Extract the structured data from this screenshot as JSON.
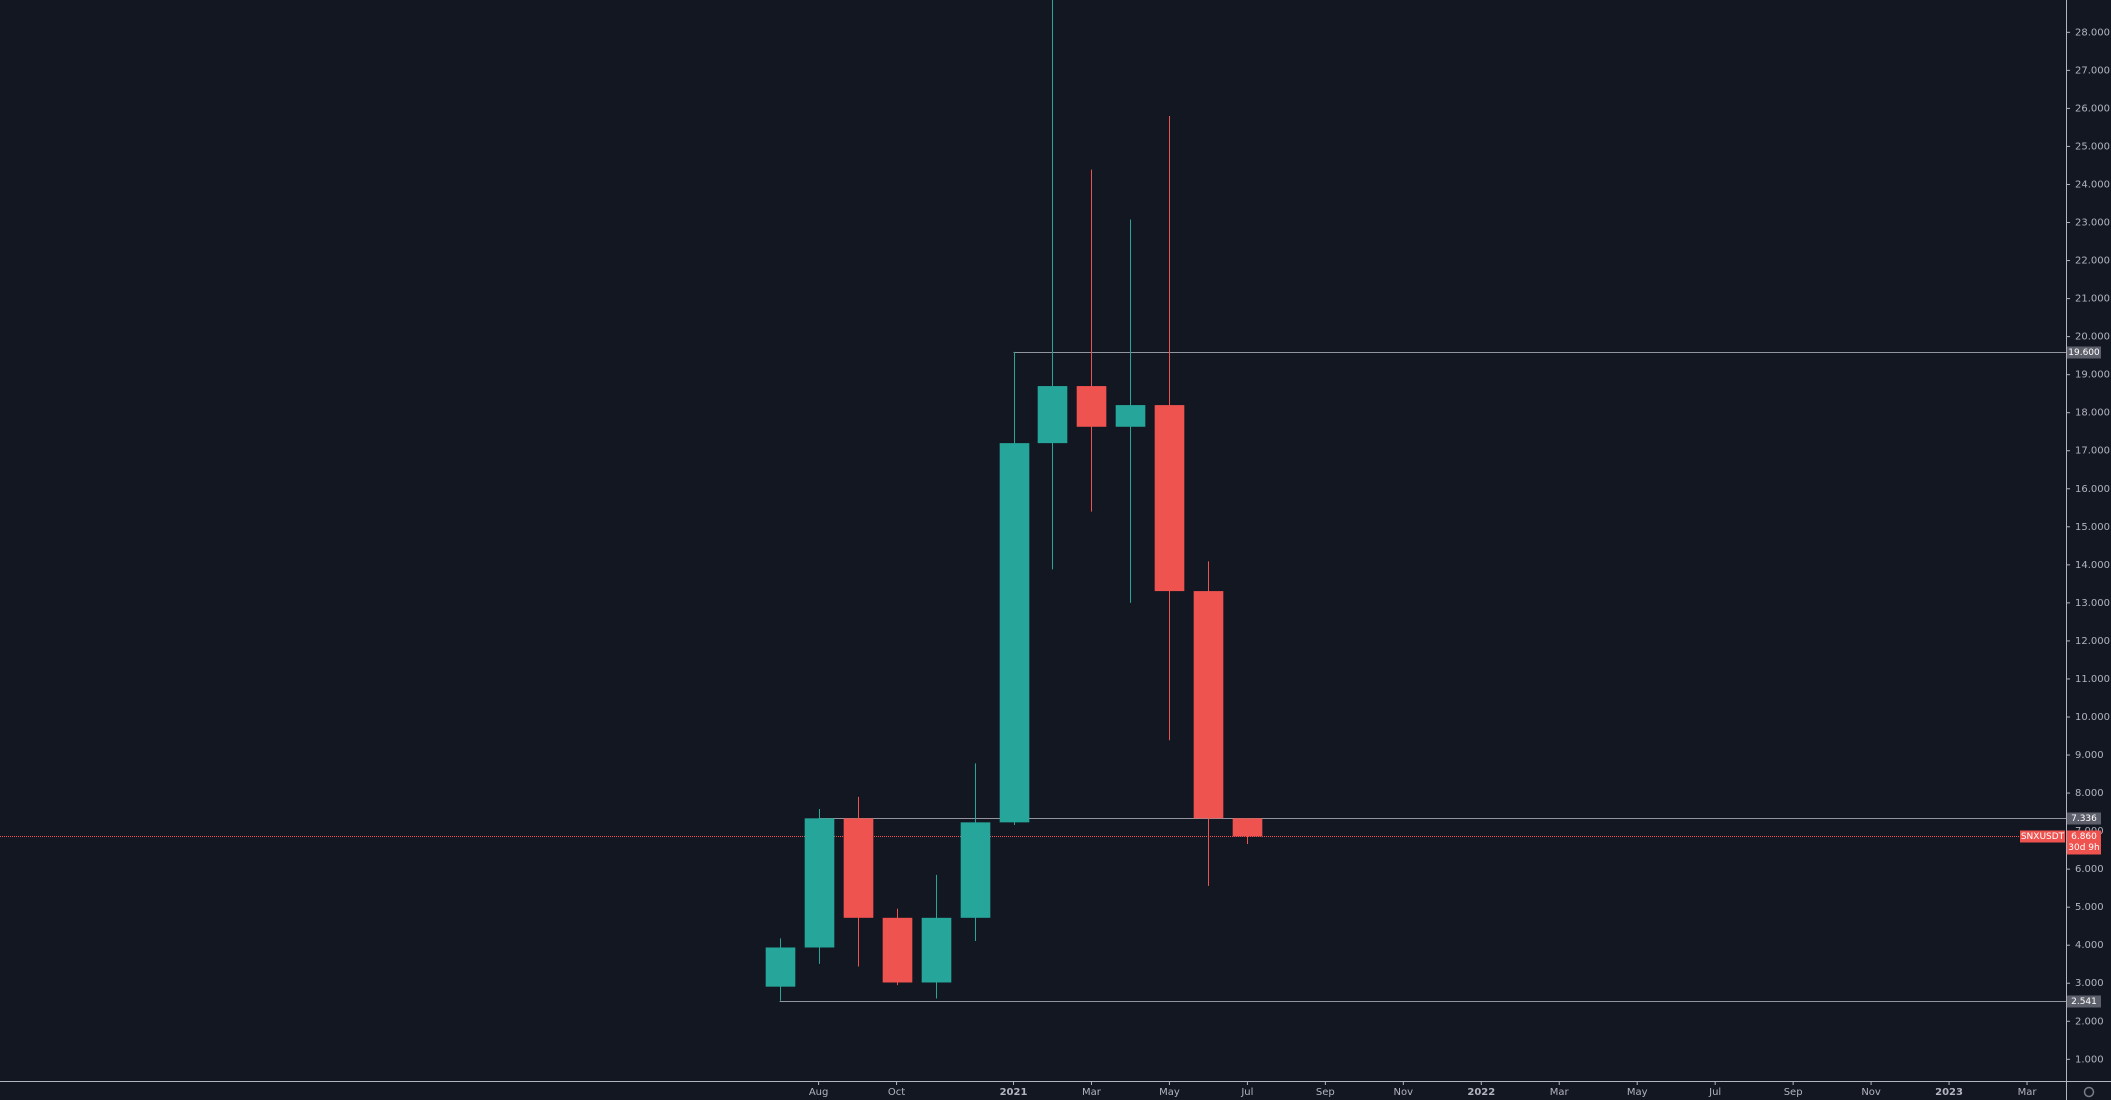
{
  "chart_data": {
    "type": "candlestick",
    "x": [
      "2020-07",
      "2020-08",
      "2020-09",
      "2020-10",
      "2020-11",
      "2020-12",
      "2021-01",
      "2021-02",
      "2021-03",
      "2021-04",
      "2021-05",
      "2021-06",
      "2021-07"
    ],
    "open": [
      2.91,
      3.94,
      7.336,
      4.72,
      3.02,
      4.72,
      7.23,
      17.2,
      18.7,
      17.63,
      18.2,
      13.31,
      7.336
    ],
    "high": [
      4.18,
      7.58,
      7.9,
      4.96,
      5.85,
      8.78,
      19.6,
      28.85,
      24.39,
      23.08,
      25.8,
      14.09,
      7.336
    ],
    "low": [
      2.541,
      3.51,
      3.44,
      2.95,
      2.6,
      4.11,
      7.16,
      13.88,
      15.4,
      13.0,
      9.39,
      5.56,
      6.66
    ],
    "close": [
      3.94,
      7.336,
      4.72,
      3.02,
      4.72,
      7.23,
      17.2,
      18.7,
      17.63,
      18.2,
      13.31,
      7.336,
      6.86
    ],
    "up_color": "#26a69a",
    "down_color": "#ef5350",
    "xlim": [
      "2018-11",
      "2023-04"
    ],
    "xticks": [
      {
        "value": "2020-08",
        "label": "Aug"
      },
      {
        "value": "2020-10",
        "label": "Oct"
      },
      {
        "value": "2021-01",
        "label": "2021"
      },
      {
        "value": "2021-03",
        "label": "Mar"
      },
      {
        "value": "2021-05",
        "label": "May"
      },
      {
        "value": "2021-07",
        "label": "Jul"
      },
      {
        "value": "2021-09",
        "label": "Sep"
      },
      {
        "value": "2021-11",
        "label": "Nov"
      },
      {
        "value": "2022-01",
        "label": "2022"
      },
      {
        "value": "2022-03",
        "label": "Mar"
      },
      {
        "value": "2022-05",
        "label": "May"
      },
      {
        "value": "2022-07",
        "label": "Jul"
      },
      {
        "value": "2022-09",
        "label": "Sep"
      },
      {
        "value": "2022-11",
        "label": "Nov"
      },
      {
        "value": "2023-01",
        "label": "2023"
      },
      {
        "value": "2023-03",
        "label": "Mar"
      }
    ],
    "ylim": [
      0.43,
      28.85
    ],
    "yticks": [
      {
        "value": 1,
        "label": "1.000"
      },
      {
        "value": 2,
        "label": "2.000"
      },
      {
        "value": 3,
        "label": "3.000"
      },
      {
        "value": 4,
        "label": "4.000"
      },
      {
        "value": 5,
        "label": "5.000"
      },
      {
        "value": 6,
        "label": "6.000"
      },
      {
        "value": 7,
        "label": "7.000"
      },
      {
        "value": 8,
        "label": "8.000"
      },
      {
        "value": 9,
        "label": "9.000"
      },
      {
        "value": 10,
        "label": "10.000"
      },
      {
        "value": 11,
        "label": "11.000"
      },
      {
        "value": 12,
        "label": "12.000"
      },
      {
        "value": 13,
        "label": "13.000"
      },
      {
        "value": 14,
        "label": "14.000"
      },
      {
        "value": 15,
        "label": "15.000"
      },
      {
        "value": 16,
        "label": "16.000"
      },
      {
        "value": 17,
        "label": "17.000"
      },
      {
        "value": 18,
        "label": "18.000"
      },
      {
        "value": 19,
        "label": "19.000"
      },
      {
        "value": 20,
        "label": "20.000"
      },
      {
        "value": 21,
        "label": "21.000"
      },
      {
        "value": 22,
        "label": "22.000"
      },
      {
        "value": 23,
        "label": "23.000"
      },
      {
        "value": 24,
        "label": "24.000"
      },
      {
        "value": 25,
        "label": "25.000"
      },
      {
        "value": 26,
        "label": "26.000"
      },
      {
        "value": 27,
        "label": "27.000"
      },
      {
        "value": 28,
        "label": "28.000"
      }
    ],
    "levels": [
      {
        "value": 19.6,
        "label": "19.600",
        "start": "2021-01"
      },
      {
        "value": 7.336,
        "label": "7.336",
        "start": "2020-08"
      },
      {
        "value": 2.541,
        "label": "2.541",
        "start": "2020-07"
      }
    ],
    "last_price": {
      "symbol": "SNXUSDT",
      "value": 6.86,
      "label": "6.860",
      "countdown": "30d 9h",
      "color": "#ef5350"
    }
  }
}
